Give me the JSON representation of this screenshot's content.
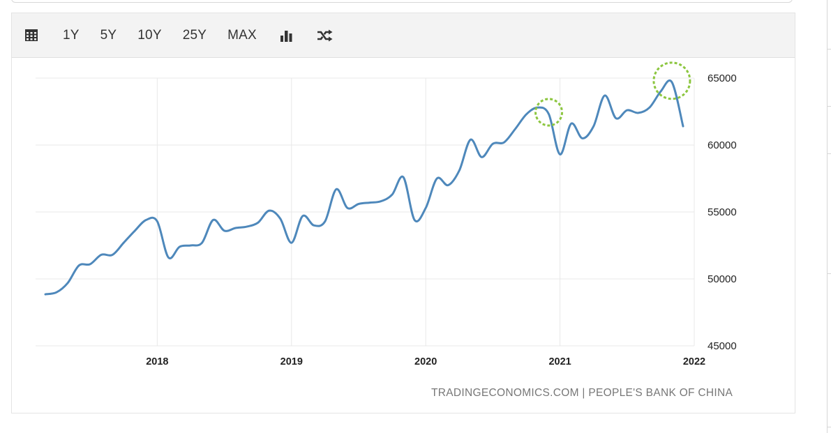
{
  "toolbar": {
    "calendar_icon": "calendar-icon",
    "ranges": [
      "1Y",
      "5Y",
      "10Y",
      "25Y",
      "MAX"
    ],
    "chart_type_icon": "bar-chart-icon",
    "compare_icon": "shuffle-icon"
  },
  "credit": "TRADINGECONOMICS.COM | PEOPLE'S BANK OF CHINA",
  "colors": {
    "line": "#4e88bb",
    "highlight": "#8cc63f",
    "grid": "#e8e8e8"
  },
  "chart_data": {
    "type": "line",
    "title": "",
    "xlabel": "",
    "ylabel": "",
    "x_ticks": [
      "2018",
      "2019",
      "2020",
      "2021",
      "2022"
    ],
    "y_ticks": [
      "45000",
      "50000",
      "55000",
      "60000",
      "65000"
    ],
    "ylim": [
      45000,
      65000
    ],
    "y_axis_side": "right",
    "grid": true,
    "legend": "none",
    "series": [
      {
        "x": [
          "2017-03",
          "2017-04",
          "2017-05",
          "2017-06",
          "2017-07",
          "2017-08",
          "2017-09",
          "2017-10",
          "2017-11",
          "2017-12",
          "2018-01",
          "2018-02",
          "2018-03",
          "2018-04",
          "2018-05",
          "2018-06",
          "2018-07",
          "2018-08",
          "2018-09",
          "2018-10",
          "2018-11",
          "2018-12",
          "2019-01",
          "2019-02",
          "2019-03",
          "2019-04",
          "2019-05",
          "2019-06",
          "2019-07",
          "2019-08",
          "2019-09",
          "2019-10",
          "2019-11",
          "2019-12",
          "2020-01",
          "2020-02",
          "2020-03",
          "2020-04",
          "2020-05",
          "2020-06",
          "2020-07",
          "2020-08",
          "2020-09",
          "2020-10",
          "2020-11",
          "2020-12",
          "2021-01",
          "2021-02",
          "2021-03",
          "2021-04",
          "2021-05",
          "2021-06",
          "2021-07",
          "2021-08",
          "2021-09",
          "2021-10",
          "2021-11",
          "2021-12"
        ],
        "values": [
          48850,
          49000,
          49700,
          51000,
          51100,
          51800,
          51800,
          52700,
          53600,
          54400,
          54300,
          51600,
          52400,
          52500,
          52700,
          54400,
          53600,
          53800,
          53900,
          54200,
          55100,
          54500,
          52700,
          54700,
          54000,
          54300,
          56700,
          55300,
          55600,
          55700,
          55800,
          56300,
          57600,
          54400,
          55300,
          57500,
          57000,
          58100,
          60400,
          59100,
          60100,
          60200,
          61200,
          62300,
          62800,
          62300,
          59300,
          61600,
          60500,
          61400,
          63700,
          62000,
          62600,
          62400,
          62800,
          64000,
          64700,
          61400
        ]
      }
    ],
    "annotations": [
      "2020-12 peak circled",
      "2021-11 peak circled"
    ]
  }
}
